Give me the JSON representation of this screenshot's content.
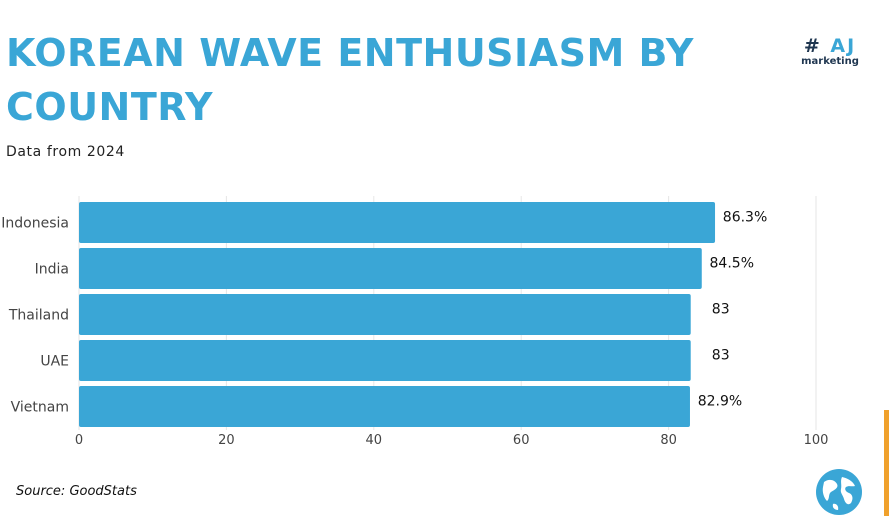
{
  "header": {
    "title": "KOREAN WAVE ENTHUSIASM BY COUNTRY",
    "subtitle": "Data from 2024"
  },
  "logo": {
    "mark_hash": "#",
    "mark_text": "AJ",
    "sub_text": "marketing"
  },
  "footer": {
    "source": "Source: GoodStats"
  },
  "colors": {
    "bar": "#3aa6d6",
    "title": "#3aa6d6",
    "logo_dark": "#1f3650",
    "accent_edge": "#f0a12c"
  },
  "icons": {
    "globe": "globe-icon"
  },
  "chart_data": {
    "type": "bar",
    "orientation": "horizontal",
    "categories": [
      "Indonesia",
      "India",
      "Thailand",
      "UAE",
      "Vietnam"
    ],
    "values": [
      86.3,
      84.5,
      83,
      83,
      82.9
    ],
    "data_labels": [
      "86.3%",
      "84.5%",
      "83",
      "83",
      "82.9%"
    ],
    "title": "KOREAN WAVE ENTHUSIASM BY COUNTRY",
    "subtitle": "Data from 2024",
    "xlabel": "",
    "ylabel": "",
    "xlim": [
      0,
      100
    ],
    "xticks": [
      0,
      20,
      40,
      60,
      80,
      100
    ],
    "grid": true,
    "legend": "none"
  }
}
